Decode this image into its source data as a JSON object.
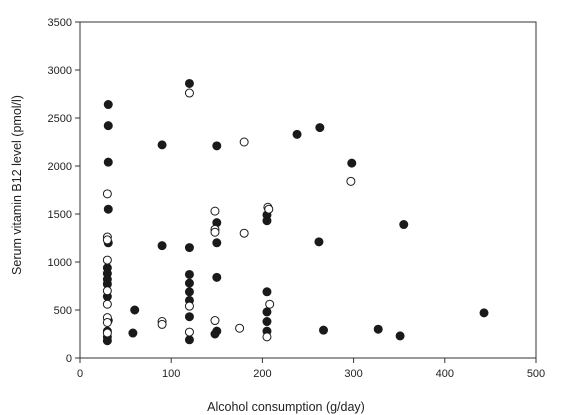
{
  "chart_data": {
    "type": "scatter",
    "title": "",
    "xlabel": "Alcohol consumption (g/day)",
    "ylabel": "Serum vitamin B12 level (pmol/l)",
    "xlim": [
      0,
      500
    ],
    "ylim": [
      0,
      3500
    ],
    "xticks": [
      0,
      100,
      200,
      300,
      400,
      500
    ],
    "yticks": [
      0,
      500,
      1000,
      1500,
      2000,
      2500,
      3000,
      3500
    ],
    "grid": false,
    "legend": "none",
    "series": [
      {
        "marker": "filled",
        "points": [
          [
            31,
            2640
          ],
          [
            31,
            2420
          ],
          [
            31,
            2040
          ],
          [
            31,
            1550
          ],
          [
            31,
            1200
          ],
          [
            30,
            940
          ],
          [
            30,
            880
          ],
          [
            30,
            820
          ],
          [
            30,
            770
          ],
          [
            30,
            640
          ],
          [
            31,
            390
          ],
          [
            30,
            280
          ],
          [
            30,
            220
          ],
          [
            30,
            180
          ],
          [
            60,
            500
          ],
          [
            58,
            260
          ],
          [
            90,
            2220
          ],
          [
            90,
            1170
          ],
          [
            120,
            2860
          ],
          [
            120,
            1150
          ],
          [
            120,
            870
          ],
          [
            120,
            780
          ],
          [
            120,
            690
          ],
          [
            120,
            600
          ],
          [
            120,
            430
          ],
          [
            120,
            190
          ],
          [
            150,
            2210
          ],
          [
            150,
            1410
          ],
          [
            150,
            1200
          ],
          [
            150,
            840
          ],
          [
            150,
            280
          ],
          [
            148,
            250
          ],
          [
            205,
            1490
          ],
          [
            205,
            1430
          ],
          [
            205,
            690
          ],
          [
            205,
            480
          ],
          [
            205,
            380
          ],
          [
            205,
            280
          ],
          [
            238,
            2330
          ],
          [
            263,
            2400
          ],
          [
            262,
            1210
          ],
          [
            267,
            290
          ],
          [
            298,
            2030
          ],
          [
            327,
            300
          ],
          [
            351,
            230
          ],
          [
            355,
            1390
          ],
          [
            443,
            470
          ]
        ]
      },
      {
        "marker": "hollow",
        "points": [
          [
            30,
            1710
          ],
          [
            30,
            1260
          ],
          [
            30,
            1230
          ],
          [
            30,
            1020
          ],
          [
            30,
            700
          ],
          [
            30,
            560
          ],
          [
            30,
            420
          ],
          [
            30,
            370
          ],
          [
            30,
            260
          ],
          [
            90,
            380
          ],
          [
            90,
            350
          ],
          [
            120,
            2760
          ],
          [
            120,
            540
          ],
          [
            120,
            270
          ],
          [
            148,
            1530
          ],
          [
            148,
            1340
          ],
          [
            148,
            1310
          ],
          [
            148,
            390
          ],
          [
            180,
            2250
          ],
          [
            180,
            1300
          ],
          [
            175,
            310
          ],
          [
            206,
            1570
          ],
          [
            207,
            1550
          ],
          [
            208,
            560
          ],
          [
            205,
            220
          ],
          [
            297,
            1840
          ]
        ]
      }
    ]
  }
}
